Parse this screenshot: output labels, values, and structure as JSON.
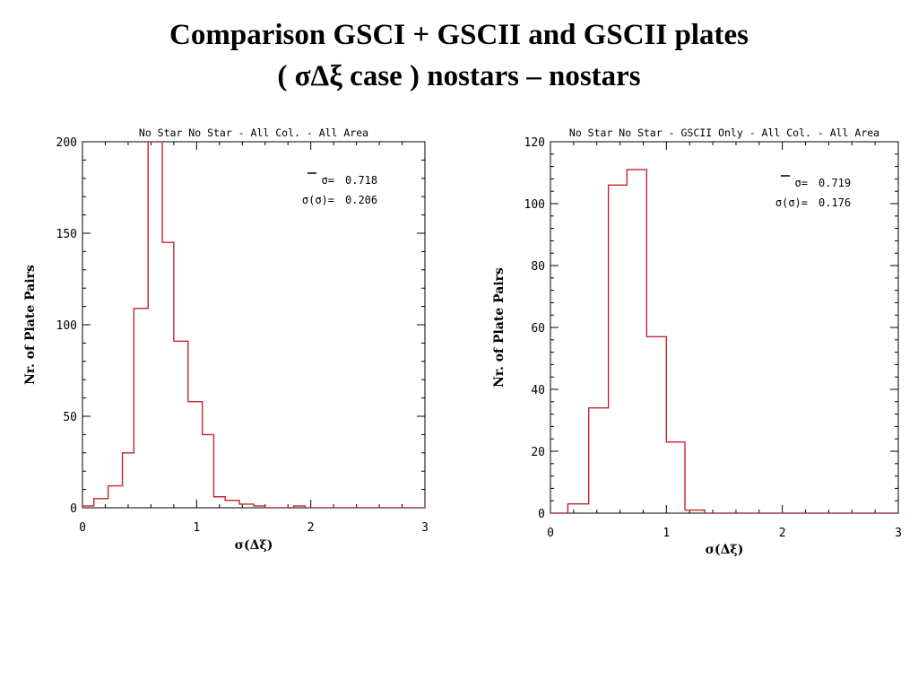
{
  "page": {
    "title_line1": "Comparison GSCI + GSCII and GSCII plates",
    "title_line2": "( σΔξ case ) nostars – nostars"
  },
  "chart_data": [
    {
      "type": "bar",
      "title": "No Star No Star - All Col. - All Area",
      "xlabel": "σ(Δξ)",
      "ylabel": "Nr. of Plate Pairs",
      "xlim": [
        0,
        3
      ],
      "ylim": [
        0,
        200
      ],
      "xticks": [
        0,
        1,
        2,
        3
      ],
      "yticks": [
        0,
        50,
        100,
        150,
        200
      ],
      "bin_width": 0.15,
      "bin_edges": [
        0,
        0.1,
        0.225,
        0.35,
        0.45,
        0.575,
        0.7,
        0.8,
        0.925,
        1.05,
        1.15,
        1.25,
        1.375,
        1.5,
        1.6,
        1.75,
        1.85,
        1.95,
        2.1,
        3.0
      ],
      "values": [
        1,
        5,
        12,
        30,
        109,
        200,
        145,
        91,
        58,
        40,
        6,
        4,
        2,
        1,
        0,
        0,
        1,
        0,
        0
      ],
      "stats": [
        {
          "label": "σ=",
          "value": "0.718",
          "overline": true
        },
        {
          "label": "σ(σ)=",
          "value": "0.206",
          "overline": false
        }
      ]
    },
    {
      "type": "bar",
      "title": "No Star No Star - GSCII Only - All Col. - All Area",
      "xlabel": "σ(Δξ)",
      "ylabel": "Nr. of Plate Pairs",
      "xlim": [
        0,
        3
      ],
      "ylim": [
        0,
        120
      ],
      "xticks": [
        0,
        1,
        2,
        3
      ],
      "yticks": [
        0,
        20,
        40,
        60,
        80,
        100,
        120
      ],
      "bin_edges": [
        0.0,
        0.15,
        0.33,
        0.5,
        0.66,
        0.83,
        1.0,
        1.16,
        1.33,
        3.0
      ],
      "values": [
        0,
        3,
        34,
        106,
        111,
        57,
        23,
        1,
        0
      ],
      "stats": [
        {
          "label": "σ=",
          "value": "0.719",
          "overline": true
        },
        {
          "label": "σ(σ)=",
          "value": "0.176",
          "overline": false
        }
      ]
    }
  ]
}
